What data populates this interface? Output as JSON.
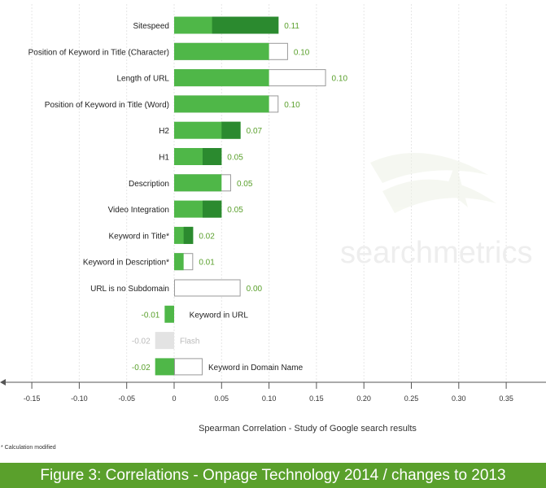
{
  "chart_data": {
    "type": "bar",
    "orientation": "horizontal",
    "categories": [
      "Sitespeed",
      "Position of Keyword in Title (Character)",
      "Length of URL",
      "Position of Keyword in Title (Word)",
      "H2",
      "H1",
      "Description",
      "Video Integration",
      "Keyword in Title*",
      "Keyword in Description*",
      "URL is no Subdomain",
      "Keyword in URL",
      "Flash",
      "Keyword in Domain Name"
    ],
    "series": [
      {
        "values": [
          0.11,
          0.1,
          0.1,
          0.1,
          0.07,
          0.05,
          0.05,
          0.05,
          0.02,
          0.01,
          0.0,
          -0.01,
          -0.02,
          -0.02
        ]
      },
      {
        "values": [
          0.04,
          0.12,
          0.16,
          0.11,
          0.05,
          0.03,
          0.06,
          0.03,
          0.01,
          0.02,
          0.07,
          0.01,
          null,
          0.03
        ]
      }
    ],
    "value_labels": [
      "0.11",
      "0.10",
      "0.10",
      "0.10",
      "0.07",
      "0.05",
      "0.05",
      "0.05",
      "0.02",
      "0.01",
      "0.00",
      "-0.01",
      "-0.02",
      "-0.02"
    ],
    "greyed": [
      false,
      false,
      false,
      false,
      false,
      false,
      false,
      false,
      false,
      false,
      false,
      false,
      true,
      false
    ],
    "xticks": [
      "-0.15",
      "-0.10",
      "-0.05",
      "0",
      "0.05",
      "0.10",
      "0.15",
      "0.20",
      "0.25",
      "0.30",
      "0.35",
      "0"
    ],
    "xlim": [
      -0.18,
      0.39
    ],
    "xlabel": "Spearman Correlation - Study of Google search results",
    "grid": true,
    "footnote": "* Calculation modified",
    "watermark": "searchmetrics",
    "colors": {
      "light_green": "#4fb748",
      "dark_green": "#2b8a2f",
      "label_green": "#5aa02c",
      "grey": "#e3e3e3",
      "grid": "#e6e6e6"
    }
  },
  "caption": "Figure 3: Correlations - Onpage Technology 2014 / changes to 2013",
  "colors": {
    "caption_bg": "#5aa02c",
    "caption_text": "#ffffff"
  }
}
